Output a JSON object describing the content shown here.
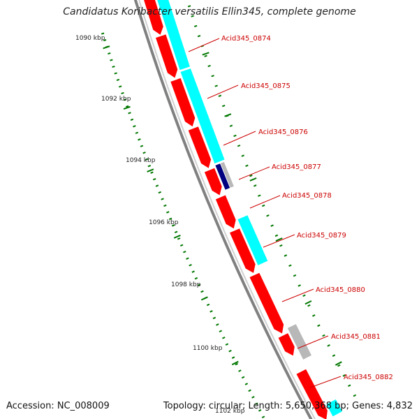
{
  "map": {
    "title": "Candidatus Koribacter versatilis Ellin345, complete genome",
    "accession_label": "Accession: NC_008009",
    "topology_text": "Topology: circular; Length: 5,650,368 bp; Genes: 4,832",
    "colors": {
      "forward_gene": "#ff0000",
      "reverse_gene": "#00ffff",
      "grey_feature": "#b8b8b8",
      "navy_feature": "#000080",
      "backbone": "#808080",
      "tick": "#007700",
      "label": "#cc0000"
    },
    "tick_labels": [
      {
        "text": "1090 kbp"
      },
      {
        "text": "1092 kbp"
      },
      {
        "text": "1094 kbp"
      },
      {
        "text": "1096 kbp"
      },
      {
        "text": "1098 kbp"
      },
      {
        "text": "1100 kbp"
      },
      {
        "text": "1102 kbp"
      }
    ],
    "gene_labels": [
      {
        "text": "Acid345_0874"
      },
      {
        "text": "Acid345_0875"
      },
      {
        "text": "Acid345_0876"
      },
      {
        "text": "Acid345_0877"
      },
      {
        "text": "Acid345_0878"
      },
      {
        "text": "Acid345_0879"
      },
      {
        "text": "Acid345_0880"
      },
      {
        "text": "Acid345_0881"
      },
      {
        "text": "Acid345_0882"
      }
    ]
  }
}
